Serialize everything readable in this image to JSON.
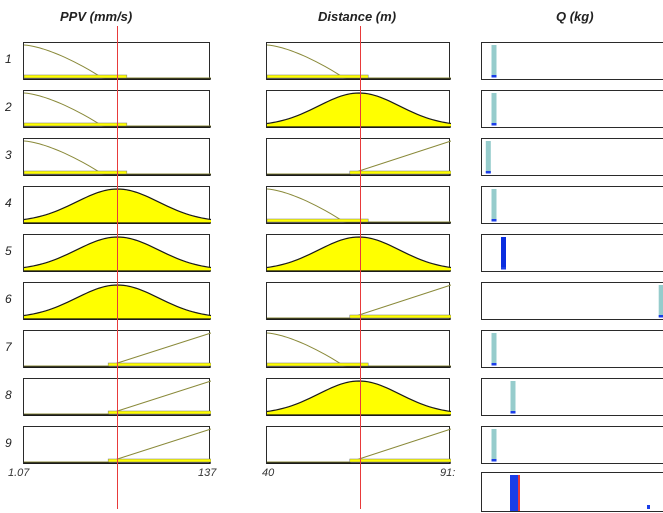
{
  "titles": {
    "ppv": "PPV  (mm/s)",
    "distance": "Distance (m)",
    "q": "Q (kg)"
  },
  "rules": [
    {
      "num": "1",
      "ppv": "low",
      "distance": "low",
      "q": {
        "level": 0.05,
        "color": "#96cccc"
      }
    },
    {
      "num": "2",
      "ppv": "low",
      "distance": "medium",
      "q": {
        "level": 0.05,
        "color": "#96cccc"
      }
    },
    {
      "num": "3",
      "ppv": "low",
      "distance": "high",
      "q": {
        "level": 0.02,
        "color": "#96cccc"
      }
    },
    {
      "num": "4",
      "ppv": "medium",
      "distance": "low",
      "q": {
        "level": 0.05,
        "color": "#96cccc"
      }
    },
    {
      "num": "5",
      "ppv": "medium",
      "distance": "medium",
      "q": {
        "level": 0.1,
        "color": "#0a2ee0"
      }
    },
    {
      "num": "6",
      "ppv": "medium",
      "distance": "high",
      "q": {
        "level": 0.93,
        "color": "#96cccc"
      }
    },
    {
      "num": "7",
      "ppv": "high",
      "distance": "low",
      "q": {
        "level": 0.05,
        "color": "#96cccc"
      }
    },
    {
      "num": "8",
      "ppv": "high",
      "distance": "medium",
      "q": {
        "level": 0.15,
        "color": "#96cccc"
      }
    },
    {
      "num": "9",
      "ppv": "high",
      "distance": "high",
      "q": {
        "level": 0.05,
        "color": "#96cccc"
      }
    }
  ],
  "ranges": {
    "ppv_min": "1.07",
    "ppv_max": "137",
    "distance_min": "40",
    "distance_max": "91:"
  },
  "colors": {
    "fill": "#ffff00",
    "curve_inactive": "#8a8a3a",
    "curve_active": "#1a1a1a",
    "cursor": "#e83a3a",
    "q_output": "#1a3ee8"
  }
}
